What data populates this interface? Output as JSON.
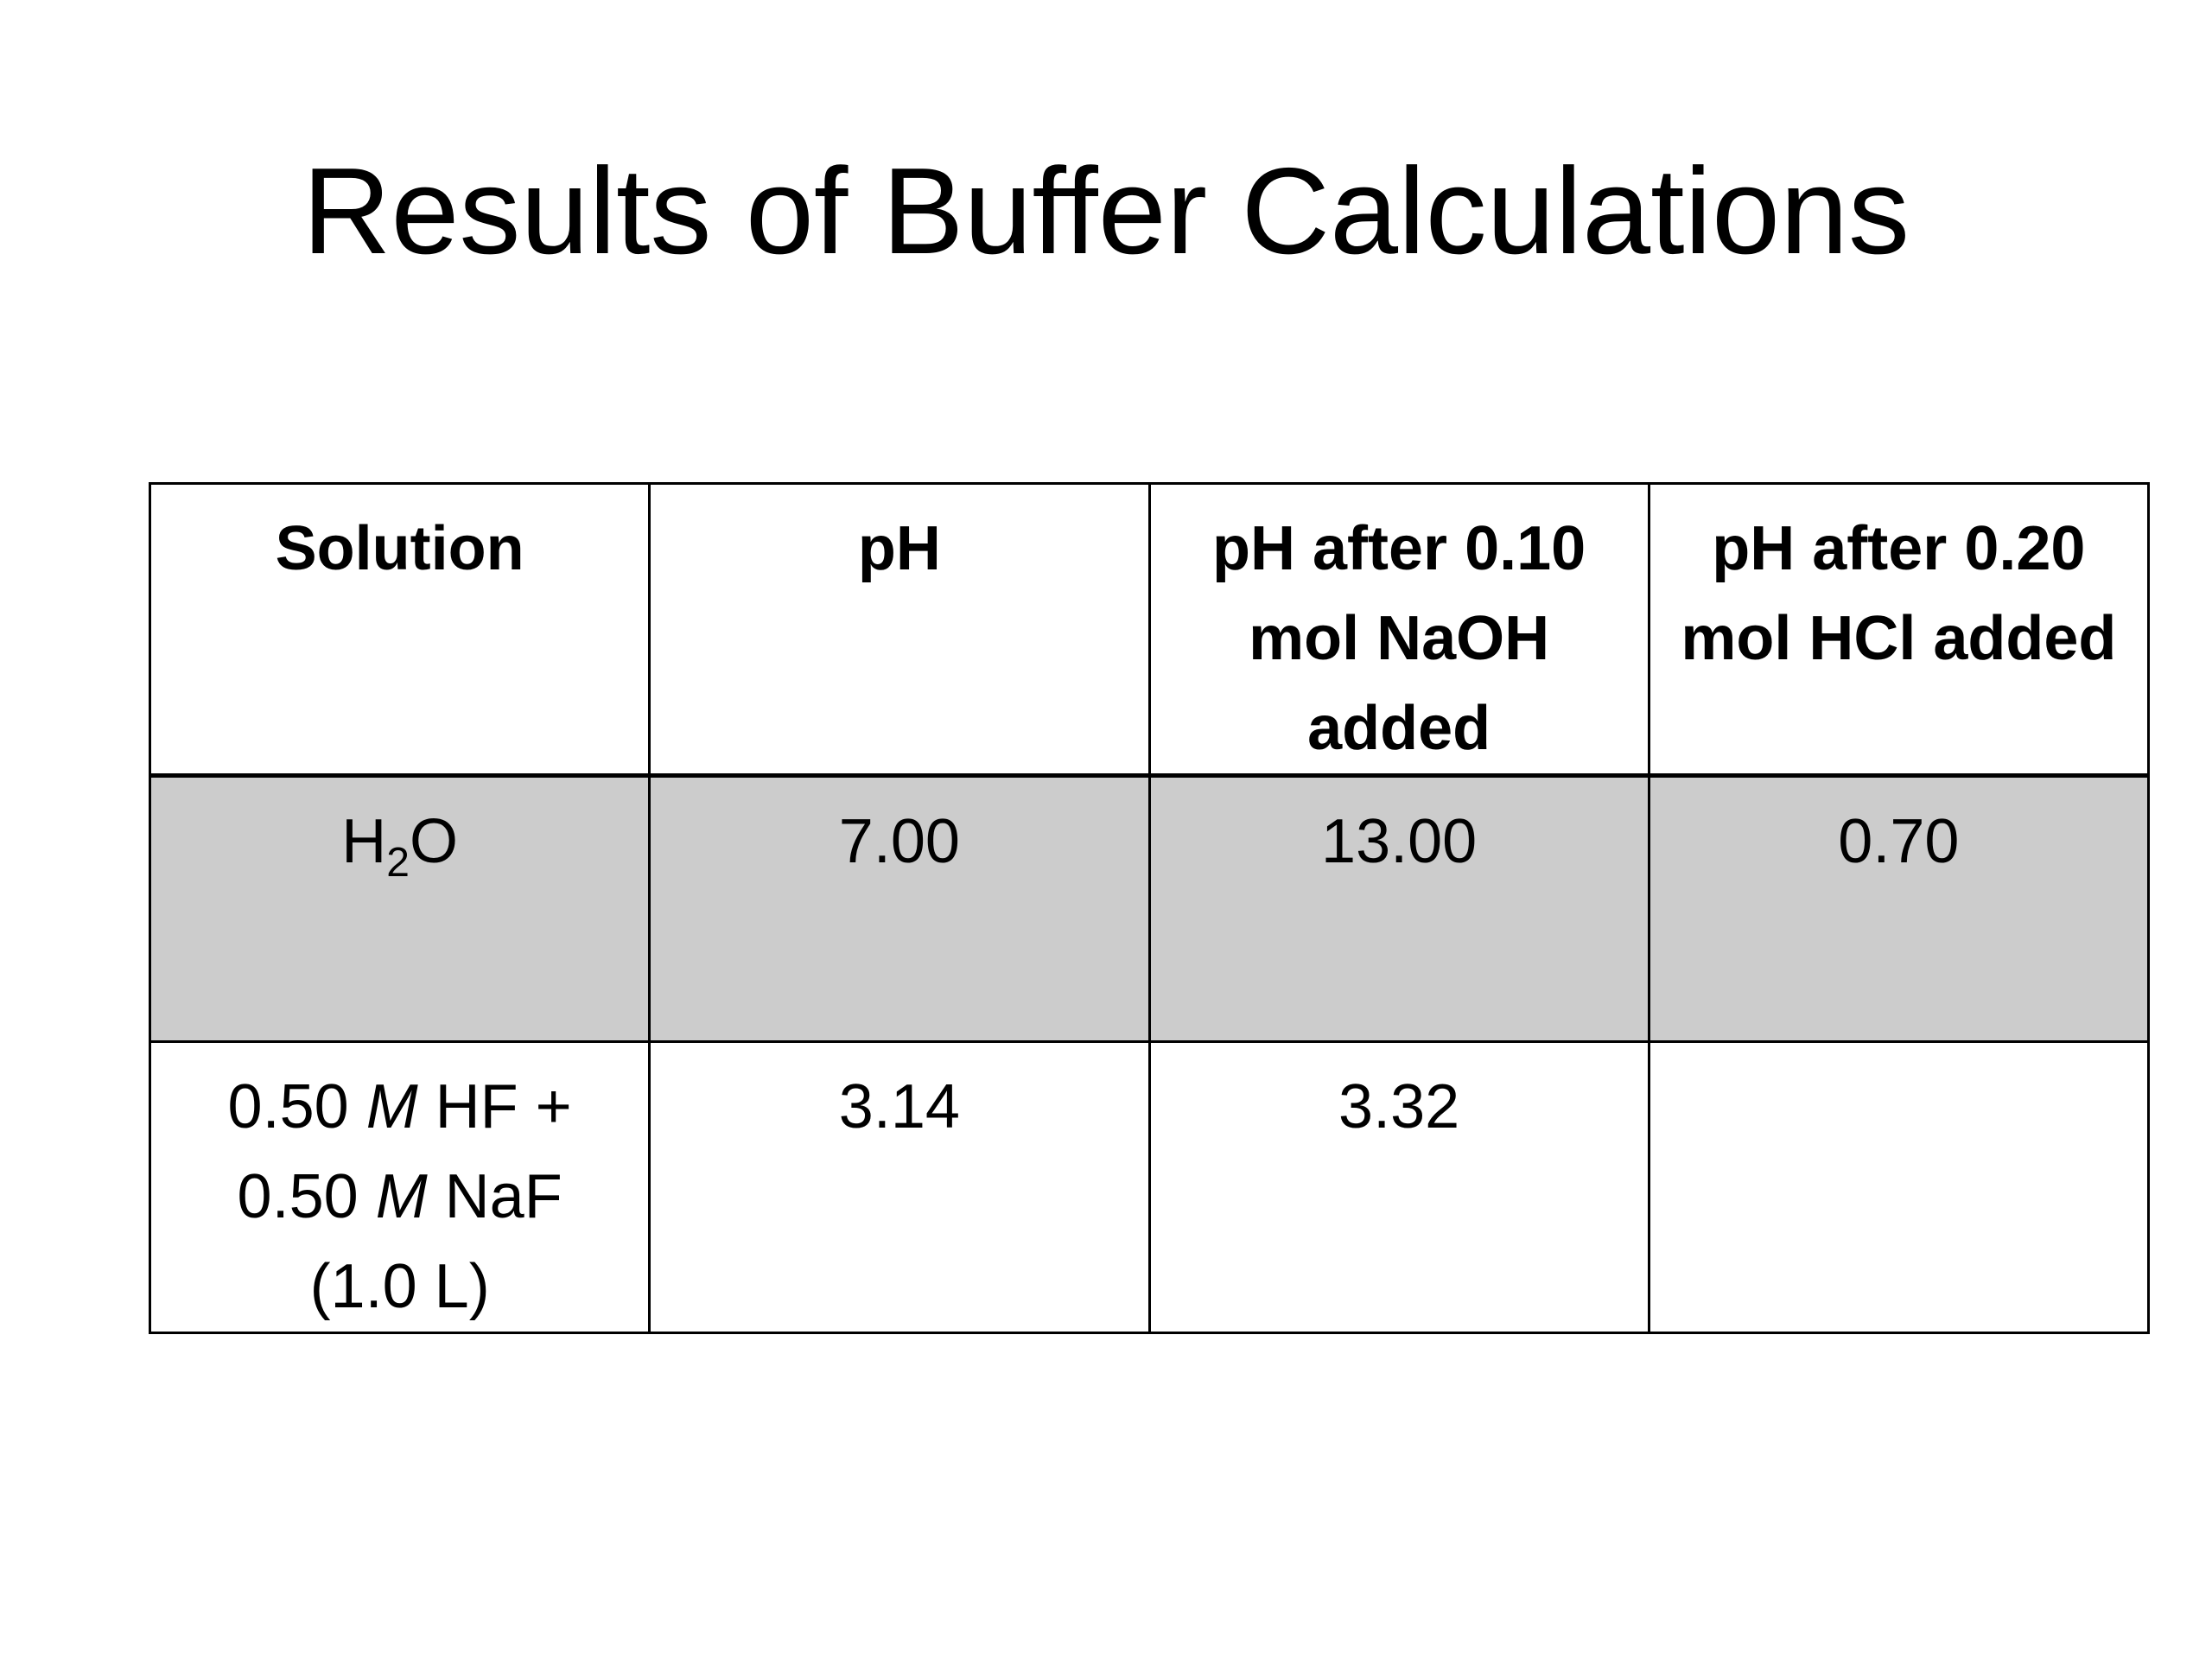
{
  "slide": {
    "title": "Results of Buffer Calculations"
  },
  "table": {
    "headers": [
      "Solution",
      "pH",
      "pH after 0.10 mol NaOH added",
      "pH after 0.20 mol HCl added"
    ],
    "rows": [
      {
        "solution": {
          "main": "H",
          "subscript": "2",
          "tail": "O"
        },
        "ph": "7.00",
        "ph_after_naoh": "13.00",
        "ph_after_hcl": "0.70",
        "background": "#cccccc"
      },
      {
        "solution": {
          "line1_a": "0.50 ",
          "line1_unit": "M",
          "line1_b": " HF +",
          "line2_a": "0.50 ",
          "line2_unit": "M",
          "line2_b": " NaF",
          "line3": "(1.0 L)"
        },
        "ph": "3.14",
        "ph_after_naoh": "3.32",
        "ph_after_hcl": "",
        "background": "#ffffff"
      }
    ]
  }
}
